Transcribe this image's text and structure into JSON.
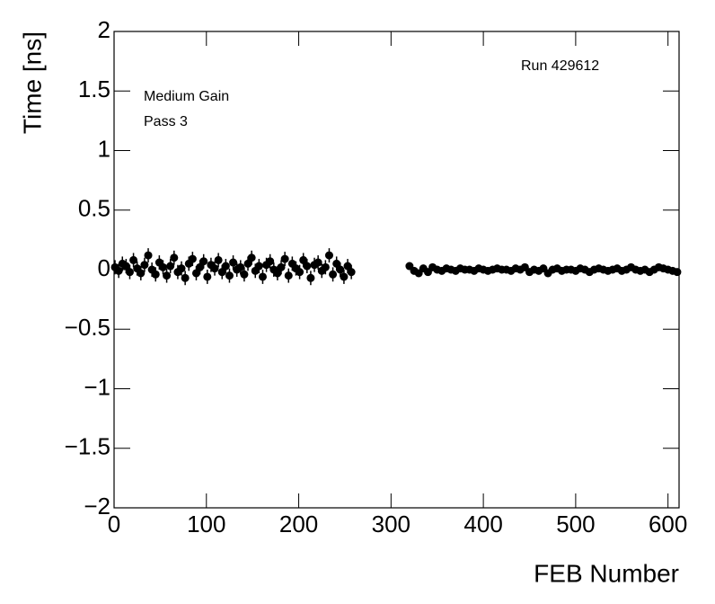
{
  "chart_data": {
    "type": "scatter",
    "xlabel": "FEB Number",
    "ylabel": "Time [ns]",
    "annotations": [
      "Run 429612",
      "Medium Gain",
      "Pass 3"
    ],
    "xlim": [
      0,
      612
    ],
    "ylim": [
      -2,
      2
    ],
    "xticks": [
      0,
      100,
      200,
      300,
      400,
      500,
      600
    ],
    "yticks": [
      {
        "value": -2,
        "label": "−2"
      },
      {
        "value": -1.5,
        "label": "−1.5"
      },
      {
        "value": -1,
        "label": "−1"
      },
      {
        "value": -0.5,
        "label": "−0.5"
      },
      0,
      0.5,
      1,
      1.5,
      2
    ],
    "series": [
      {
        "color": "#000000",
        "error": 0.06,
        "x": [
          1,
          5,
          9,
          13,
          17,
          21,
          25,
          29,
          33,
          37,
          41,
          45,
          49,
          53,
          57,
          61,
          65,
          69,
          73,
          77,
          81,
          85,
          89,
          93,
          97,
          101,
          105,
          109,
          113,
          117,
          121,
          125,
          129,
          133,
          137,
          141,
          145,
          149,
          153,
          157,
          161,
          165,
          169,
          173,
          177,
          181,
          185,
          189,
          193,
          197,
          201,
          205,
          209,
          213,
          217,
          221,
          225,
          229,
          233,
          237,
          241,
          245,
          249,
          253,
          257
        ],
        "y": [
          0.02,
          -0.01,
          0.05,
          0.03,
          -0.02,
          0.08,
          0.01,
          -0.03,
          0.04,
          0.12,
          0.0,
          -0.04,
          0.06,
          0.02,
          -0.05,
          0.03,
          0.1,
          -0.02,
          0.01,
          -0.07,
          0.05,
          0.09,
          -0.03,
          0.02,
          0.07,
          -0.06,
          0.04,
          0.01,
          0.08,
          -0.02,
          0.03,
          -0.05,
          0.06,
          0.0,
          0.02,
          -0.04,
          0.05,
          0.1,
          -0.01,
          0.03,
          -0.06,
          0.04,
          0.07,
          0.0,
          -0.03,
          0.02,
          0.09,
          -0.05,
          0.05,
          0.01,
          -0.02,
          0.08,
          0.03,
          -0.07,
          0.04,
          0.06,
          -0.01,
          0.02,
          0.12,
          -0.04,
          0.05,
          0.0,
          -0.06,
          0.03,
          -0.02
        ]
      },
      {
        "color": "#000000",
        "error": 0.01,
        "x": [
          320,
          325,
          330,
          335,
          340,
          345,
          350,
          355,
          360,
          365,
          370,
          375,
          380,
          385,
          390,
          395,
          400,
          405,
          410,
          415,
          420,
          425,
          430,
          435,
          440,
          445,
          450,
          455,
          460,
          465,
          470,
          475,
          480,
          485,
          490,
          495,
          500,
          505,
          510,
          515,
          520,
          525,
          530,
          535,
          540,
          545,
          550,
          555,
          560,
          565,
          570,
          575,
          580,
          585,
          590,
          595,
          600,
          605,
          610
        ],
        "y": [
          0.03,
          -0.01,
          -0.03,
          0.01,
          -0.02,
          0.02,
          0.0,
          -0.01,
          0.01,
          0.0,
          -0.01,
          0.01,
          0.0,
          0.0,
          -0.01,
          0.01,
          0.0,
          -0.01,
          0.0,
          0.01,
          0.0,
          0.0,
          -0.01,
          0.01,
          0.0,
          0.02,
          -0.02,
          0.0,
          -0.01,
          0.01,
          -0.03,
          0.0,
          0.01,
          -0.01,
          0.0,
          0.0,
          -0.01,
          0.01,
          0.0,
          -0.02,
          0.0,
          0.01,
          0.0,
          -0.01,
          0.0,
          0.01,
          -0.01,
          0.0,
          0.02,
          0.0,
          -0.01,
          0.0,
          -0.02,
          0.0,
          0.02,
          0.01,
          0.0,
          -0.01,
          -0.02
        ]
      }
    ]
  }
}
